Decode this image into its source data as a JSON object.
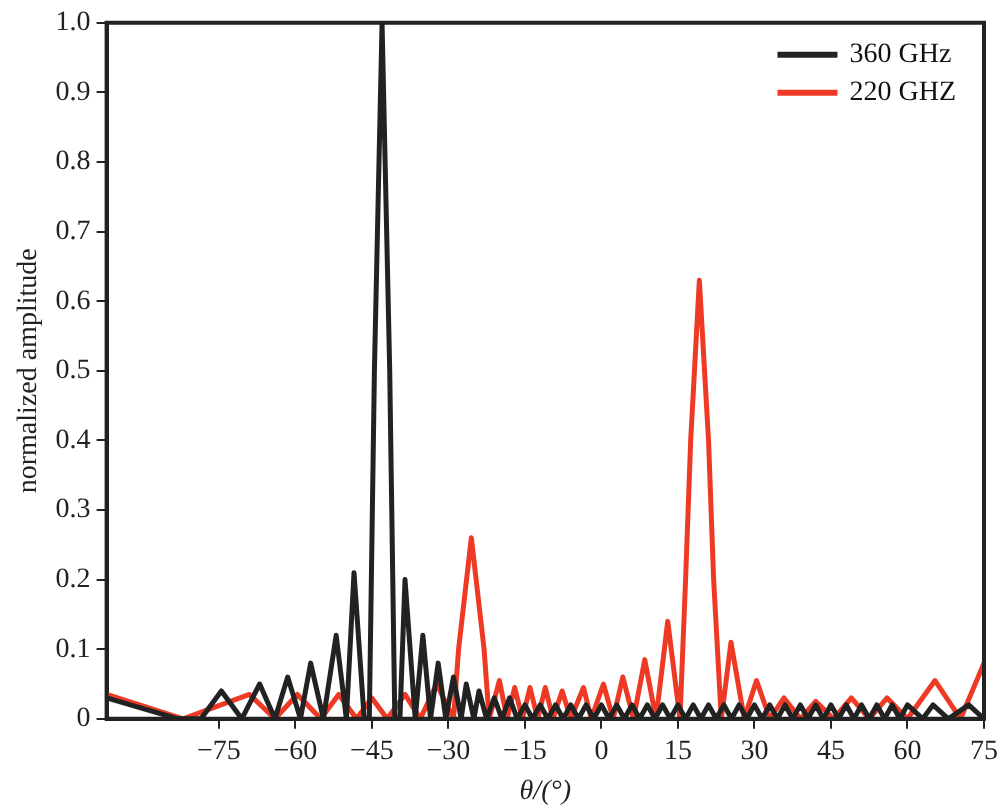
{
  "chart_data": {
    "type": "line",
    "xlabel": "θ/(°)",
    "ylabel": "normalized amplitude",
    "xlim": [
      -97,
      75
    ],
    "xticks": [
      -75,
      -60,
      -45,
      -30,
      -15,
      0,
      15,
      30,
      45,
      60,
      75
    ],
    "ylim": [
      0,
      1
    ],
    "yticks": [
      0,
      0.1,
      0.2,
      0.3,
      0.4,
      0.5,
      0.6,
      0.7,
      0.8,
      0.9,
      {
        "value": 1,
        "label": "1.0"
      }
    ],
    "grid": false,
    "legend": "top right",
    "marker": "none",
    "line_style": "solid",
    "series": [
      {
        "name": "360 GHz",
        "color": "#222222",
        "x": [
          -97,
          -90,
          -83,
          -78.5,
          -74.5,
          -70.5,
          -67,
          -64,
          -61.5,
          -59,
          -57,
          -54.5,
          -52,
          -50,
          -48.5,
          -46.5,
          -45.5,
          -44.5,
          -43,
          -41.5,
          -40.5,
          -39.5,
          -38.5,
          -36.5,
          -35,
          -33.5,
          -32,
          -30.5,
          -29,
          -27.5,
          -26.5,
          -25,
          -24,
          -22.5,
          -21,
          -19.5,
          -18,
          -16.5,
          -15,
          -13.5,
          -12,
          -10.5,
          -9,
          -7.5,
          -6,
          -4.5,
          -3,
          -1.5,
          0,
          1.5,
          3,
          4.5,
          6,
          7.5,
          9,
          10.5,
          12,
          13.5,
          15,
          16.5,
          18,
          19.5,
          21,
          22.5,
          24,
          25.5,
          27,
          28.5,
          30,
          31.5,
          33,
          34.5,
          36,
          37.5,
          39,
          40.5,
          42,
          43.5,
          45,
          46.5,
          48,
          49.5,
          51,
          52.5,
          54,
          55.5,
          57,
          58.5,
          60,
          63,
          65,
          68,
          72,
          75
        ],
        "values": [
          0.03,
          0.015,
          0,
          0,
          0.04,
          0,
          0.05,
          0,
          0.06,
          0,
          0.08,
          0,
          0.12,
          0,
          0.21,
          0,
          0,
          0.5,
          1,
          0.5,
          0,
          0,
          0.2,
          0,
          0.12,
          0,
          0.08,
          0,
          0.06,
          0,
          0.05,
          0,
          0.04,
          0,
          0.03,
          0,
          0.03,
          0,
          0.02,
          0,
          0.02,
          0,
          0.02,
          0,
          0.02,
          0,
          0.02,
          0,
          0.02,
          0,
          0.02,
          0,
          0.02,
          0,
          0.02,
          0,
          0.02,
          0,
          0.02,
          0,
          0.02,
          0,
          0.02,
          0,
          0.02,
          0,
          0.02,
          0,
          0.02,
          0,
          0.02,
          0,
          0.02,
          0,
          0.02,
          0,
          0.02,
          0,
          0.02,
          0,
          0.02,
          0,
          0.02,
          0,
          0.02,
          0,
          0.02,
          0,
          0.02,
          0,
          0.02,
          0,
          0.02,
          0
        ]
      },
      {
        "name": "220 GHZ",
        "color": "#ee3a24",
        "x": [
          -97,
          -82,
          -69,
          -64,
          -59.6,
          -55,
          -51.5,
          -48,
          -45,
          -42,
          -38.5,
          -35.5,
          -32.3,
          -29,
          -28,
          -25.5,
          -23,
          -22,
          -20,
          -18.5,
          -17,
          -15.5,
          -14,
          -12.5,
          -11,
          -9.5,
          -7.7,
          -6,
          -3.5,
          -2,
          0.4,
          2.3,
          4.2,
          6.3,
          8.5,
          10.7,
          13,
          15.4,
          16.5,
          17.5,
          19.2,
          21,
          22,
          23.5,
          25.4,
          28,
          30.4,
          33,
          35.8,
          39,
          42,
          45.5,
          49,
          52.5,
          56,
          60,
          65.4,
          70.4,
          75
        ],
        "values": [
          0.035,
          0,
          0.035,
          0,
          0.035,
          0,
          0.035,
          0,
          0.03,
          0,
          0.035,
          0,
          0.05,
          0,
          0.1,
          0.26,
          0.1,
          0,
          0.055,
          0,
          0.045,
          0,
          0.045,
          0,
          0.045,
          0,
          0.04,
          0,
          0.045,
          0,
          0.05,
          0,
          0.06,
          0,
          0.085,
          0,
          0.14,
          0,
          0.2,
          0.4,
          0.63,
          0.4,
          0.2,
          0,
          0.11,
          0,
          0.055,
          0,
          0.03,
          0,
          0.025,
          0,
          0.03,
          0,
          0.03,
          0,
          0.055,
          0,
          0.08
        ]
      }
    ]
  }
}
